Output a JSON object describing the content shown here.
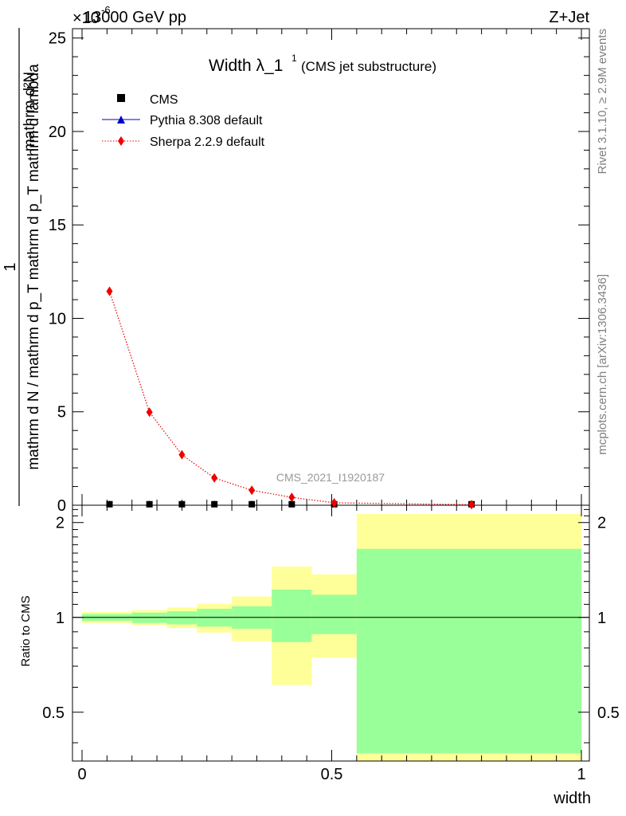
{
  "header": {
    "energy_label": "13000 GeV pp",
    "process_label": "Z+Jet",
    "exponent_label": "×10",
    "exponent_power": "-6"
  },
  "side_text": {
    "rivet": "Rivet 3.1.10, ≥ 2.9M events",
    "mcplots": "mcplots.cern.ch [arXiv:1306.3436]"
  },
  "chart_data": [
    {
      "type": "scatter",
      "title": "Width λ_1",
      "title_sup": "1",
      "subtitle": "(CMS jet substructure)",
      "watermark": "CMS_2021_I1920187",
      "ylabel_numerator": "1",
      "ylabel_denominator": "mathrm d N / mathrm d p_T mathrm d p_T mathrm d lambda",
      "ylabel_right": "mathrm d²N",
      "xlim": [
        0,
        1
      ],
      "ylim": [
        0,
        25.5
      ],
      "y_ticks": [
        0,
        5,
        10,
        15,
        20,
        25
      ],
      "legend_position": "top-left",
      "legend": [
        "CMS",
        "Pythia 8.308 default",
        "Sherpa 2.2.9 default"
      ],
      "series": [
        {
          "name": "CMS",
          "color": "#000000",
          "marker": "square",
          "x": [
            0.055,
            0.135,
            0.2,
            0.265,
            0.34,
            0.42,
            0.505,
            0.78
          ],
          "y": [
            0.01,
            0.01,
            0.01,
            0.01,
            0.01,
            0.01,
            0.01,
            0.01
          ]
        },
        {
          "name": "Pythia 8.308 default",
          "color": "#0000cc",
          "marker": "triangle",
          "x": [
            0.055,
            0.135,
            0.2,
            0.265,
            0.34,
            0.42,
            0.505,
            0.78
          ],
          "y": [
            0.0,
            0.0,
            0.0,
            0.0,
            0.0,
            0.0,
            0.0,
            0.0
          ]
        },
        {
          "name": "Sherpa 2.2.9 default",
          "color": "#ee0000",
          "marker": "diamond",
          "line": "dotted",
          "x": [
            0.055,
            0.135,
            0.2,
            0.265,
            0.34,
            0.42,
            0.505,
            0.78
          ],
          "y": [
            11.45,
            4.98,
            2.7,
            1.46,
            0.8,
            0.42,
            0.13,
            0.03
          ]
        }
      ]
    },
    {
      "type": "area",
      "ylabel": "Ratio to CMS",
      "xlabel": "width",
      "xlim": [
        0,
        1
      ],
      "ylim": [
        0.35,
        2.27
      ],
      "y_ticks": [
        0.5,
        1,
        2
      ],
      "x_ticks": [
        0,
        0.5,
        1
      ],
      "reference_line": 1,
      "bins": [
        {
          "x0": 0.0,
          "x1": 0.1,
          "yellow": [
            0.96,
            1.04
          ],
          "green": [
            0.975,
            1.025
          ]
        },
        {
          "x0": 0.1,
          "x1": 0.17,
          "yellow": [
            0.945,
            1.055
          ],
          "green": [
            0.96,
            1.035
          ]
        },
        {
          "x0": 0.17,
          "x1": 0.23,
          "yellow": [
            0.925,
            1.075
          ],
          "green": [
            0.95,
            1.045
          ]
        },
        {
          "x0": 0.23,
          "x1": 0.3,
          "yellow": [
            0.895,
            1.105
          ],
          "green": [
            0.935,
            1.065
          ]
        },
        {
          "x0": 0.3,
          "x1": 0.38,
          "yellow": [
            0.84,
            1.165
          ],
          "green": [
            0.92,
            1.085
          ]
        },
        {
          "x0": 0.38,
          "x1": 0.46,
          "yellow": [
            0.61,
            1.45
          ],
          "green": [
            0.835,
            1.225
          ]
        },
        {
          "x0": 0.46,
          "x1": 0.55,
          "yellow": [
            0.745,
            1.37
          ],
          "green": [
            0.885,
            1.18
          ]
        },
        {
          "x0": 0.55,
          "x1": 1.0,
          "yellow": [
            0.35,
            2.13
          ],
          "green": [
            0.37,
            1.65
          ]
        }
      ],
      "colors": {
        "yellow": "#ffff99",
        "green": "#99ff99"
      }
    }
  ]
}
